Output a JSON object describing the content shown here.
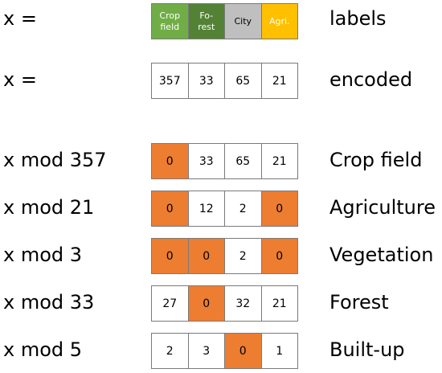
{
  "header_rows": [
    {
      "left": "x =",
      "right": "labels",
      "cells": [
        {
          "text": "Crop\nfield",
          "color": "#70AD47"
        },
        {
          "text": "Fo-\nrest",
          "color": "#548235"
        },
        {
          "text": "City",
          "color": "#BFBFBF"
        },
        {
          "text": "Agri.",
          "color": "#FFC000"
        }
      ]
    },
    {
      "left": "x =",
      "right": "encoded",
      "cells": [
        "357",
        "33",
        "65",
        "21"
      ]
    }
  ],
  "mod_rows": [
    {
      "left": "x mod 357",
      "right": "Crop field",
      "cells": [
        "0",
        "33",
        "65",
        "21"
      ]
    },
    {
      "left": "x mod 21",
      "right": "Agriculture",
      "cells": [
        "0",
        "12",
        "2",
        "0"
      ]
    },
    {
      "left": "x mod 3",
      "right": "Vegetation",
      "cells": [
        "0",
        "0",
        "2",
        "0"
      ]
    },
    {
      "left": "x mod 33",
      "right": "Forest",
      "cells": [
        "27",
        "0",
        "32",
        "21"
      ]
    },
    {
      "left": "x mod 5",
      "right": "Built-up",
      "cells": [
        "2",
        "3",
        "0",
        "1"
      ]
    }
  ],
  "colors": {
    "zero_highlight": "#ED7D31",
    "border": "#7A7A7A"
  }
}
